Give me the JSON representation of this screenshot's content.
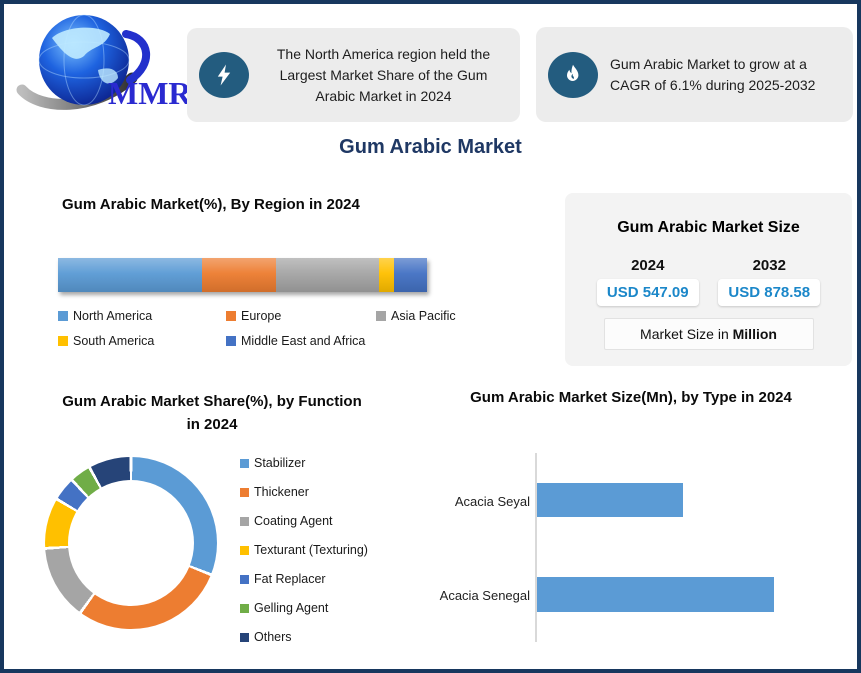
{
  "brand": {
    "logo_text": "MMR"
  },
  "header": {
    "callout_region": {
      "icon": "lightning-icon",
      "text": "The North America region held the Largest Market Share of the Gum Arabic Market in 2024"
    },
    "callout_cagr": {
      "icon": "flame-icon",
      "text": "Gum Arabic Market to grow at a CAGR of 6.1% during 2025-2032"
    }
  },
  "title": "Gum Arabic Market",
  "market_size_card": {
    "title": "Gum Arabic Market Size",
    "columns": [
      {
        "year": "2024",
        "value": "USD 547.09"
      },
      {
        "year": "2032",
        "value": "USD 878.58"
      }
    ],
    "footnote_prefix": "Market Size in ",
    "footnote_bold": "Million"
  },
  "colors": {
    "frame_border": "#17375E",
    "title_navy": "#1F3864",
    "callout_bg": "#ECECEC",
    "icon_circle": "#235C7F",
    "value_blue": "#1B87C9",
    "card_bg": "#F3F3F3",
    "bar_blue": "#5B9BD5"
  },
  "chart_data": [
    {
      "type": "bar",
      "subtype": "stacked-horizontal-100pct",
      "title": "Gum Arabic Market(%), By Region in 2024",
      "categories": [
        "North America",
        "Europe",
        "Asia Pacific",
        "South America",
        "Middle East and Africa"
      ],
      "values": [
        39,
        20,
        28,
        4,
        9
      ],
      "colors": [
        "#5B9BD5",
        "#ED7D31",
        "#A5A5A5",
        "#FFC000",
        "#4472C4"
      ],
      "legend_rows": [
        [
          0,
          1,
          2
        ],
        [
          3,
          4
        ]
      ],
      "legend_position": "bottom",
      "axis": "none"
    },
    {
      "type": "pie",
      "subtype": "donut",
      "title": "Gum Arabic Market Share(%), by Function in 2024",
      "labels": [
        "Stabilizer",
        "Thickener",
        "Coating Agent",
        "Texturant (Texturing)",
        "Fat Replacer",
        "Gelling Agent",
        "Others"
      ],
      "values": [
        31,
        29,
        14,
        9.5,
        4.5,
        4,
        8
      ],
      "colors": [
        "#5B9BD5",
        "#ED7D31",
        "#A5A5A5",
        "#FFC000",
        "#4472C4",
        "#70AD47",
        "#264478"
      ],
      "start_angle_deg": 0,
      "hole_ratio": 0.73,
      "legend_position": "right"
    },
    {
      "type": "bar",
      "subtype": "horizontal",
      "title": "Gum Arabic Market Size(Mn), by Type in 2024",
      "categories": [
        "Acacia Seyal",
        "Acacia Senegal"
      ],
      "values": [
        209,
        338
      ],
      "xlim": [
        0,
        390
      ],
      "color": "#5B9BD5",
      "ylabel": "",
      "xlabel": "",
      "grid": false
    }
  ]
}
